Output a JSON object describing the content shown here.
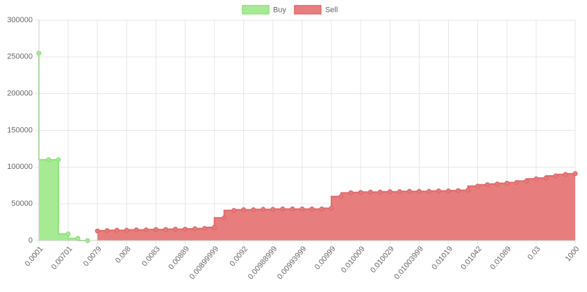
{
  "chart_data": {
    "type": "stepped-area",
    "categories": [
      "0.0001",
      null,
      null,
      "0.00701",
      null,
      null,
      "0.0079",
      null,
      null,
      "0.008",
      null,
      null,
      "0.0083",
      null,
      null,
      "0.00889",
      null,
      null,
      "0.00899999",
      null,
      null,
      "0.0092",
      null,
      null,
      "0.00988999",
      null,
      null,
      "0.00993999",
      null,
      null,
      "0.00999",
      null,
      null,
      "0.010009",
      null,
      null,
      "0.010029",
      null,
      null,
      "0.01003999",
      null,
      null,
      "0.01019",
      null,
      null,
      "0.01042",
      null,
      null,
      "0.01089",
      null,
      null,
      "0.03",
      null,
      null,
      null,
      "1000"
    ],
    "series": [
      {
        "name": "Buy",
        "color": "#8ee27b",
        "fill": "#a6eb94",
        "values": [
          255000,
          110000,
          110000,
          9000,
          3000,
          0,
          null,
          null,
          null,
          null,
          null,
          null,
          null,
          null,
          null,
          null,
          null,
          null,
          null,
          null,
          null,
          null,
          null,
          null,
          null,
          null,
          null,
          null,
          null,
          null,
          null,
          null,
          null,
          null,
          null,
          null,
          null,
          null,
          null,
          null,
          null,
          null,
          null,
          null,
          null,
          null,
          null,
          null,
          null,
          null,
          null,
          null,
          null,
          null,
          null,
          null
        ]
      },
      {
        "name": "Sell",
        "color": "#df6a6a",
        "fill": "#e77d7d",
        "values": [
          null,
          null,
          null,
          null,
          null,
          null,
          13000,
          13500,
          14000,
          14000,
          14500,
          14500,
          15000,
          15000,
          15500,
          15500,
          16000,
          16500,
          18000,
          31000,
          41000,
          42000,
          42000,
          42500,
          42500,
          43000,
          43000,
          43000,
          43000,
          43000,
          44000,
          60000,
          65000,
          65500,
          66000,
          66000,
          66500,
          66500,
          67000,
          67000,
          67000,
          67500,
          67500,
          68000,
          68500,
          74000,
          76000,
          77000,
          78000,
          79000,
          81000,
          84000,
          85000,
          88000,
          90000,
          91000
        ]
      }
    ],
    "ylim": [
      0,
      300000
    ],
    "yticks": [
      0,
      50000,
      100000,
      150000,
      200000,
      250000,
      300000
    ],
    "grid": true,
    "legend": "top"
  }
}
